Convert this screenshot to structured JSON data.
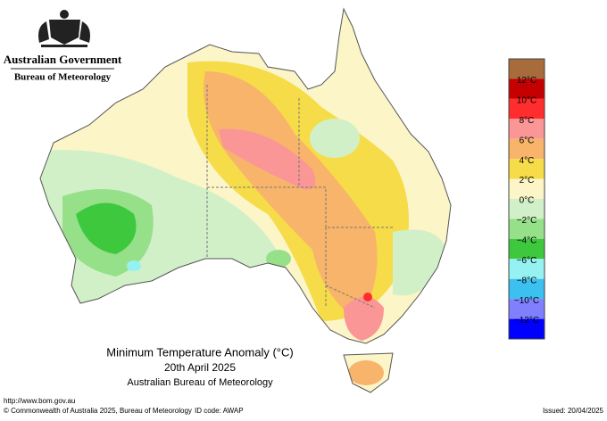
{
  "header": {
    "government": "Australian Government",
    "bureau": "Bureau of Meteorology"
  },
  "map": {
    "title": "Minimum Temperature Anomaly (°C)",
    "date": "20th April 2025",
    "source": "Australian Bureau of Meteorology"
  },
  "legend": {
    "colors": [
      "#a86b3c",
      "#c40000",
      "#ff2d2d",
      "#fa9696",
      "#f7b46a",
      "#f6dc48",
      "#fbf5c8",
      "#d2f0c8",
      "#96e08a",
      "#3ec83e",
      "#96f2f2",
      "#3cc0f0",
      "#8080ff",
      "#0000ff"
    ],
    "labels": [
      "12°C",
      "10°C",
      "8°C",
      "6°C",
      "4°C",
      "2°C",
      "0°C",
      "−2°C",
      "−4°C",
      "−6°C",
      "−8°C",
      "−10°C",
      "−12°C"
    ]
  },
  "footer": {
    "url": "http://www.bom.gov.au",
    "copyright": "© Commonwealth of Australia 2025, Bureau of Meteorology",
    "id_code": "ID code: AWAP",
    "issued": "Issued: 20/04/2025"
  }
}
